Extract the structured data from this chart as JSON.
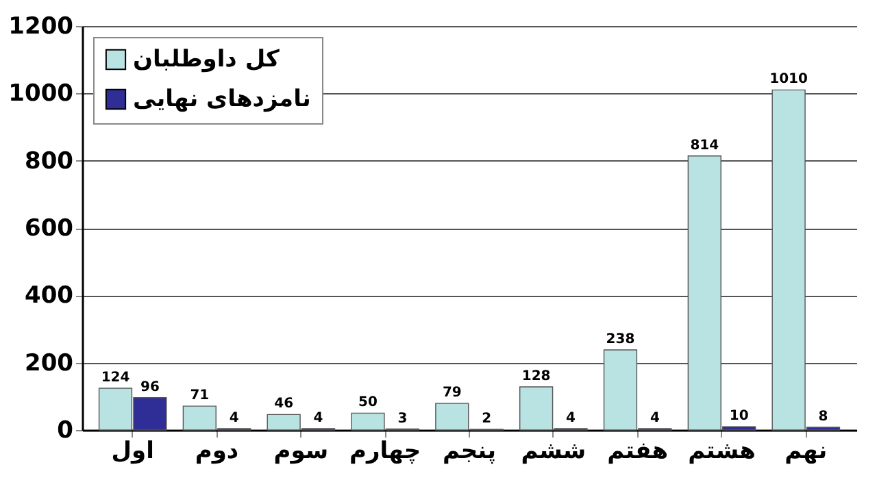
{
  "chart_data": {
    "type": "bar",
    "categories": [
      "اول",
      "دوم",
      "سوم",
      "چهارم",
      "پنجم",
      "ششم",
      "هفتم",
      "هشتم",
      "نهم"
    ],
    "series": [
      {
        "name": "کل داوطلبان",
        "color": "#b9e3e3",
        "values": [
          124,
          71,
          46,
          50,
          79,
          128,
          238,
          814,
          1010
        ]
      },
      {
        "name": "نامزدهای نهایی",
        "color": "#2e2e96",
        "values": [
          96,
          4,
          4,
          3,
          2,
          4,
          4,
          10,
          8
        ]
      }
    ],
    "ylim": [
      0,
      1200
    ],
    "yticks": [
      0,
      200,
      400,
      600,
      800,
      1000,
      1200
    ],
    "grid": "y",
    "legend": "top left",
    "data_labels": true
  }
}
